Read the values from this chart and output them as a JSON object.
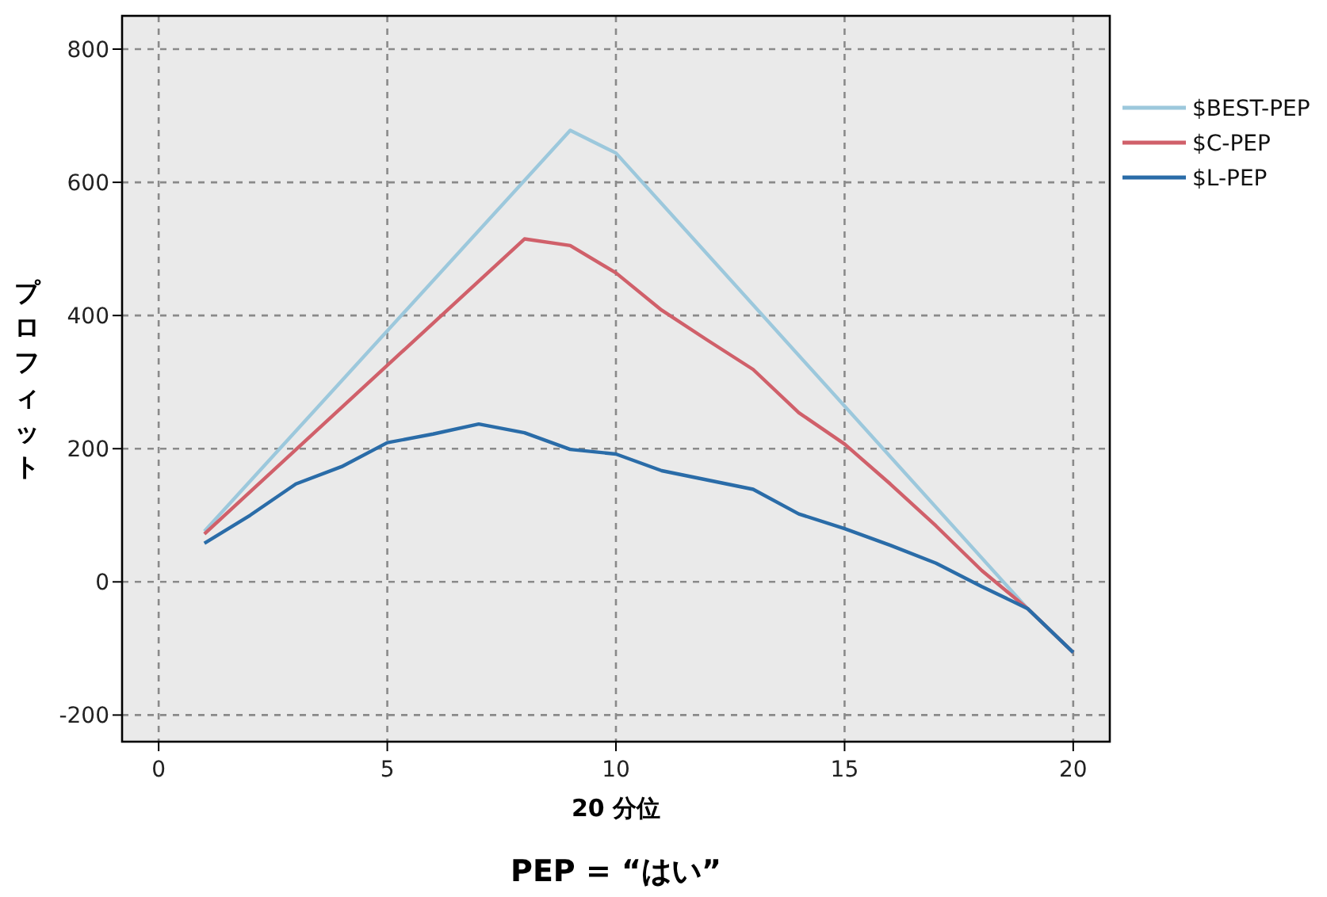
{
  "chart_data": {
    "type": "line",
    "title": "PEP = “はい”",
    "xlabel": "20 分位",
    "ylabel": "プロフィット",
    "xlim": [
      -0.8,
      20.8
    ],
    "ylim": [
      -240,
      850
    ],
    "xticks": [
      0,
      5,
      10,
      15,
      20
    ],
    "yticks": [
      -200,
      0,
      200,
      400,
      600,
      800
    ],
    "grid": true,
    "legend": "right",
    "line_style": "solid",
    "marker": "none",
    "series": [
      {
        "name": "$BEST-PEP",
        "color": "#9cc8dc",
        "x": [
          1,
          9,
          10,
          19,
          20
        ],
        "values": [
          76,
          678,
          644,
          -40,
          -106
        ]
      },
      {
        "name": "$C-PEP",
        "color": "#d0606a",
        "x": [
          1,
          8,
          9,
          10,
          11,
          12,
          13,
          14,
          15,
          16,
          17,
          18,
          19,
          20
        ],
        "values": [
          72,
          515,
          505,
          464,
          408,
          363,
          319,
          254,
          207,
          147,
          84,
          17,
          -40,
          -106
        ]
      },
      {
        "name": "$L-PEP",
        "color": "#2a6ca8",
        "x": [
          1,
          2,
          3,
          4,
          5,
          6,
          7,
          8,
          9,
          10,
          11,
          12,
          13,
          14,
          15,
          16,
          17,
          18,
          19,
          20
        ],
        "values": [
          58,
          100,
          147,
          173,
          209,
          222,
          237,
          224,
          199,
          192,
          167,
          153,
          139,
          102,
          80,
          55,
          28,
          -7,
          -40,
          -106
        ]
      }
    ]
  }
}
